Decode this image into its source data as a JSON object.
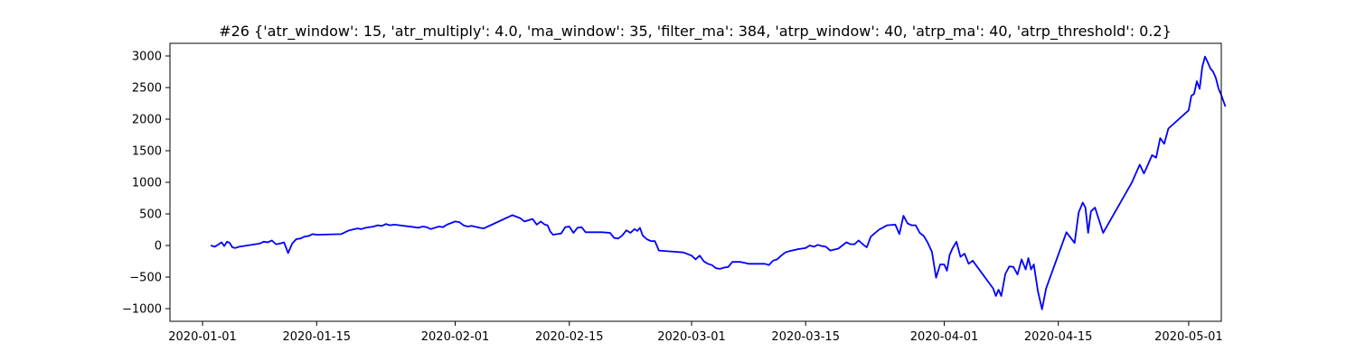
{
  "chart_data": {
    "type": "line",
    "title": "#26 {'atr_window': 15, 'atr_multiply': 4.0, 'ma_window': 35, 'filter_ma': 384, 'atrp_window': 40, 'atrp_ma': 40, 'atrp_threshold': 0.2}",
    "xlabel": "",
    "ylabel": "",
    "xlim": [
      "2019-12-28",
      "2020-05-05"
    ],
    "ylim": [
      -1200,
      3200
    ],
    "x_ticks": [
      "2020-01-01",
      "2020-01-15",
      "2020-02-01",
      "2020-02-15",
      "2020-03-01",
      "2020-03-15",
      "2020-04-01",
      "2020-04-15",
      "2020-05-01"
    ],
    "y_ticks": [
      -1000,
      -500,
      0,
      500,
      1000,
      1500,
      2000,
      2500,
      3000
    ],
    "grid": false,
    "legend": "none",
    "series": [
      {
        "color": "#0000ff",
        "points": [
          [
            "2020-01-02",
            0
          ],
          [
            "2020-01-02",
            -20
          ],
          [
            "2020-01-03",
            20
          ],
          [
            "2020-01-03",
            50
          ],
          [
            "2020-01-03",
            -10
          ],
          [
            "2020-01-04",
            60
          ],
          [
            "2020-01-04",
            40
          ],
          [
            "2020-01-04",
            -30
          ],
          [
            "2020-01-05",
            -40
          ],
          [
            "2020-01-05",
            -20
          ],
          [
            "2020-01-08",
            30
          ],
          [
            "2020-01-08",
            60
          ],
          [
            "2020-01-09",
            50
          ],
          [
            "2020-01-09",
            80
          ],
          [
            "2020-01-10",
            20
          ],
          [
            "2020-01-10",
            30
          ],
          [
            "2020-01-11",
            50
          ],
          [
            "2020-01-11",
            -120
          ],
          [
            "2020-01-12",
            30
          ],
          [
            "2020-01-12",
            100
          ],
          [
            "2020-01-13",
            110
          ],
          [
            "2020-01-13",
            140
          ],
          [
            "2020-01-14",
            150
          ],
          [
            "2020-01-14",
            180
          ],
          [
            "2020-01-15",
            170
          ],
          [
            "2020-01-18",
            180
          ],
          [
            "2020-01-19",
            240
          ],
          [
            "2020-01-20",
            270
          ],
          [
            "2020-01-20",
            260
          ],
          [
            "2020-01-21",
            280
          ],
          [
            "2020-01-22",
            300
          ],
          [
            "2020-01-22",
            320
          ],
          [
            "2020-01-23",
            310
          ],
          [
            "2020-01-23",
            340
          ],
          [
            "2020-01-24",
            320
          ],
          [
            "2020-01-24",
            330
          ],
          [
            "2020-01-27",
            290
          ],
          [
            "2020-01-27",
            280
          ],
          [
            "2020-01-28",
            300
          ],
          [
            "2020-01-28",
            290
          ],
          [
            "2020-01-29",
            260
          ],
          [
            "2020-01-30",
            300
          ],
          [
            "2020-01-30",
            290
          ],
          [
            "2020-01-31",
            330
          ],
          [
            "2020-02-01",
            380
          ],
          [
            "2020-02-01",
            370
          ],
          [
            "2020-02-02",
            320
          ],
          [
            "2020-02-02",
            300
          ],
          [
            "2020-02-03",
            310
          ],
          [
            "2020-02-04",
            280
          ],
          [
            "2020-02-04",
            270
          ],
          [
            "2020-02-05",
            300
          ],
          [
            "2020-02-08",
            480
          ],
          [
            "2020-02-09",
            430
          ],
          [
            "2020-02-09",
            380
          ],
          [
            "2020-02-10",
            400
          ],
          [
            "2020-02-10",
            420
          ],
          [
            "2020-02-11",
            330
          ],
          [
            "2020-02-11",
            380
          ],
          [
            "2020-02-12",
            330
          ],
          [
            "2020-02-12",
            320
          ],
          [
            "2020-02-12",
            220
          ],
          [
            "2020-02-13",
            170
          ],
          [
            "2020-02-13",
            180
          ],
          [
            "2020-02-14",
            190
          ],
          [
            "2020-02-14",
            290
          ],
          [
            "2020-02-15",
            300
          ],
          [
            "2020-02-15",
            200
          ],
          [
            "2020-02-16",
            280
          ],
          [
            "2020-02-16",
            290
          ],
          [
            "2020-02-17",
            210
          ],
          [
            "2020-02-19",
            210
          ],
          [
            "2020-02-20",
            200
          ],
          [
            "2020-02-20",
            120
          ],
          [
            "2020-02-21",
            110
          ],
          [
            "2020-02-21",
            160
          ],
          [
            "2020-02-22",
            240
          ],
          [
            "2020-02-22",
            200
          ],
          [
            "2020-02-23",
            260
          ],
          [
            "2020-02-23",
            230
          ],
          [
            "2020-02-23",
            280
          ],
          [
            "2020-02-24",
            160
          ],
          [
            "2020-02-24",
            100
          ],
          [
            "2020-02-25",
            70
          ],
          [
            "2020-02-25",
            70
          ],
          [
            "2020-02-26",
            -80
          ],
          [
            "2020-02-28",
            -100
          ],
          [
            "2020-02-29",
            -110
          ],
          [
            "2020-03-01",
            -160
          ],
          [
            "2020-03-01",
            -220
          ],
          [
            "2020-03-02",
            -160
          ],
          [
            "2020-03-02",
            -250
          ],
          [
            "2020-03-03",
            -290
          ],
          [
            "2020-03-03",
            -310
          ],
          [
            "2020-03-04",
            -360
          ],
          [
            "2020-03-04",
            -370
          ],
          [
            "2020-03-05",
            -350
          ],
          [
            "2020-03-05",
            -340
          ],
          [
            "2020-03-06",
            -260
          ],
          [
            "2020-03-07",
            -260
          ],
          [
            "2020-03-08",
            -290
          ],
          [
            "2020-03-10",
            -290
          ],
          [
            "2020-03-10",
            -310
          ],
          [
            "2020-03-11",
            -240
          ],
          [
            "2020-03-11",
            -220
          ],
          [
            "2020-03-12",
            -160
          ],
          [
            "2020-03-12",
            -110
          ],
          [
            "2020-03-13",
            -90
          ],
          [
            "2020-03-14",
            -60
          ],
          [
            "2020-03-15",
            -40
          ],
          [
            "2020-03-15",
            0
          ],
          [
            "2020-03-16",
            -20
          ],
          [
            "2020-03-16",
            10
          ],
          [
            "2020-03-17",
            -10
          ],
          [
            "2020-03-17",
            -20
          ],
          [
            "2020-03-18",
            -80
          ],
          [
            "2020-03-19",
            -50
          ],
          [
            "2020-03-20",
            50
          ],
          [
            "2020-03-20",
            20
          ],
          [
            "2020-03-21",
            20
          ],
          [
            "2020-03-21",
            80
          ],
          [
            "2020-03-22",
            20
          ],
          [
            "2020-03-22",
            -30
          ],
          [
            "2020-03-23",
            140
          ],
          [
            "2020-03-24",
            250
          ],
          [
            "2020-03-25",
            320
          ],
          [
            "2020-03-26",
            330
          ],
          [
            "2020-03-26",
            180
          ],
          [
            "2020-03-27",
            470
          ],
          [
            "2020-03-27",
            350
          ],
          [
            "2020-03-28",
            320
          ],
          [
            "2020-03-28",
            320
          ],
          [
            "2020-03-29",
            200
          ],
          [
            "2020-03-29",
            150
          ],
          [
            "2020-03-30",
            40
          ],
          [
            "2020-03-30",
            -100
          ],
          [
            "2020-03-31",
            -510
          ],
          [
            "2020-03-31",
            -300
          ],
          [
            "2020-04-01",
            -300
          ],
          [
            "2020-04-01",
            -400
          ],
          [
            "2020-04-01",
            -150
          ],
          [
            "2020-04-02",
            -50
          ],
          [
            "2020-04-02",
            60
          ],
          [
            "2020-04-03",
            -180
          ],
          [
            "2020-04-03",
            -130
          ],
          [
            "2020-04-04",
            -290
          ],
          [
            "2020-04-04",
            -240
          ],
          [
            "2020-04-07",
            -680
          ],
          [
            "2020-04-07",
            -800
          ],
          [
            "2020-04-07",
            -700
          ],
          [
            "2020-04-08",
            -800
          ],
          [
            "2020-04-08",
            -450
          ],
          [
            "2020-04-09",
            -330
          ],
          [
            "2020-04-09",
            -340
          ],
          [
            "2020-04-10",
            -460
          ],
          [
            "2020-04-10",
            -220
          ],
          [
            "2020-04-11",
            -380
          ],
          [
            "2020-04-11",
            -200
          ],
          [
            "2020-04-11",
            -380
          ],
          [
            "2020-04-12",
            -300
          ],
          [
            "2020-04-12",
            -730
          ],
          [
            "2020-04-13",
            -1010
          ],
          [
            "2020-04-13",
            -680
          ],
          [
            "2020-04-16",
            210
          ],
          [
            "2020-04-17",
            40
          ],
          [
            "2020-04-17",
            520
          ],
          [
            "2020-04-18",
            680
          ],
          [
            "2020-04-18",
            600
          ],
          [
            "2020-04-18",
            200
          ],
          [
            "2020-04-19",
            540
          ],
          [
            "2020-04-19",
            600
          ],
          [
            "2020-04-20",
            400
          ],
          [
            "2020-04-20",
            200
          ],
          [
            "2020-04-24",
            990
          ],
          [
            "2020-04-25",
            1280
          ],
          [
            "2020-04-25",
            1140
          ],
          [
            "2020-04-26",
            1280
          ],
          [
            "2020-04-26",
            1430
          ],
          [
            "2020-04-27",
            1390
          ],
          [
            "2020-04-27",
            1700
          ],
          [
            "2020-04-28",
            1610
          ],
          [
            "2020-04-28",
            1850
          ],
          [
            "2020-05-01",
            2140
          ],
          [
            "2020-05-01",
            2370
          ],
          [
            "2020-05-01",
            2400
          ],
          [
            "2020-05-02",
            2600
          ],
          [
            "2020-05-02",
            2480
          ],
          [
            "2020-05-02",
            2830
          ],
          [
            "2020-05-03",
            2990
          ],
          [
            "2020-05-03",
            2900
          ],
          [
            "2020-05-03",
            2800
          ],
          [
            "2020-05-04",
            2750
          ],
          [
            "2020-05-04",
            2650
          ],
          [
            "2020-05-04",
            2480
          ],
          [
            "2020-05-05",
            2380
          ],
          [
            "2020-05-05",
            2200
          ]
        ]
      }
    ]
  }
}
